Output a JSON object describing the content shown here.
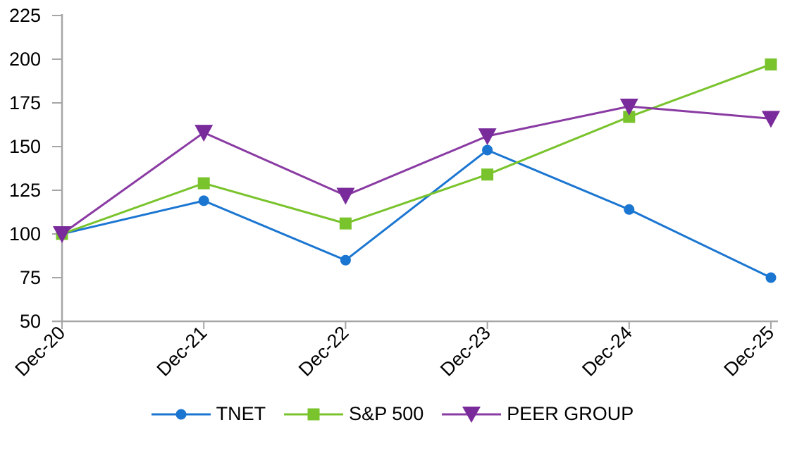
{
  "chart_data": {
    "type": "line",
    "title": "",
    "xlabel": "",
    "ylabel": "",
    "categories": [
      "Dec-20",
      "Dec-21",
      "Dec-22",
      "Dec-23",
      "Dec-24",
      "Dec-25"
    ],
    "series": [
      {
        "name": "TNET",
        "marker": "circle",
        "color": "#1B76D1",
        "values": [
          100,
          119,
          85,
          148,
          114,
          75
        ]
      },
      {
        "name": "S&P 500",
        "marker": "square",
        "color": "#79C32C",
        "values": [
          100,
          129,
          106,
          134,
          167,
          197
        ]
      },
      {
        "name": "PEER GROUP",
        "marker": "triangle-down",
        "color": "#8A3BA3",
        "marker_color": "#7A2B9B",
        "values": [
          100,
          158,
          122,
          156,
          173,
          166
        ]
      }
    ],
    "ylim": [
      50,
      225
    ],
    "yticks": [
      50,
      75,
      100,
      125,
      150,
      175,
      200,
      225
    ],
    "ytick_step": 25,
    "grid": false,
    "legend_position": "bottom",
    "axis_color": "#A6A6A6",
    "label_color": "#000000",
    "background_color": "#FFFFFF"
  }
}
